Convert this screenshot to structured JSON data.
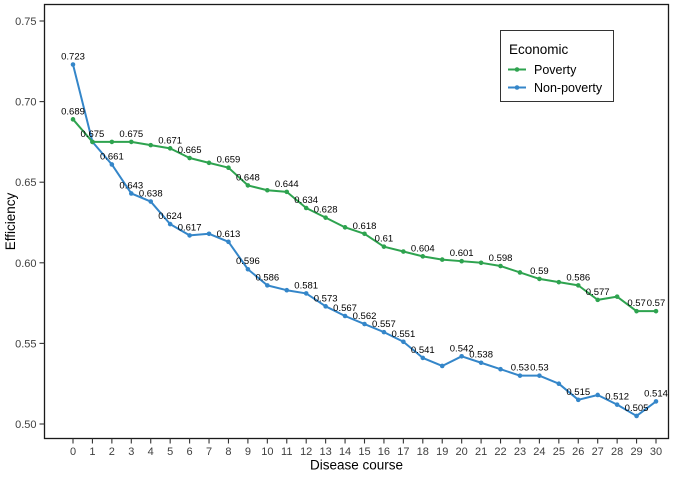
{
  "figure": {
    "background": "#ffffff",
    "panel_border_color": "#1a1a1a",
    "tick_color": "#333333",
    "tick_label_color": "#404040",
    "data_label_color": "#000000"
  },
  "chart_data": {
    "type": "line",
    "title": "",
    "xlabel": "Disease course",
    "ylabel": "Efficiency",
    "x": [
      0,
      1,
      2,
      3,
      4,
      5,
      6,
      7,
      8,
      9,
      10,
      11,
      12,
      13,
      14,
      15,
      16,
      17,
      18,
      19,
      20,
      21,
      22,
      23,
      24,
      25,
      26,
      27,
      28,
      29,
      30
    ],
    "x_tick_labels": [
      "0",
      "1",
      "2",
      "3",
      "4",
      "5",
      "6",
      "7",
      "8",
      "9",
      "10",
      "11",
      "12",
      "13",
      "14",
      "15",
      "16",
      "17",
      "18",
      "19",
      "20",
      "21",
      "22",
      "23",
      "24",
      "25",
      "26",
      "27",
      "28",
      "29",
      "30"
    ],
    "y_tick_values": [
      0.5,
      0.55,
      0.6,
      0.65,
      0.7,
      0.75
    ],
    "y_tick_labels": [
      "0.50",
      "0.55",
      "0.60",
      "0.65",
      "0.70",
      "0.75"
    ],
    "xlim": [
      0,
      30
    ],
    "ylim": [
      0.5,
      0.75
    ],
    "grid": "off",
    "legend": {
      "title": "Economic",
      "position": "top-right-inside",
      "entries": [
        {
          "label": "Poverty",
          "color": "#2ea34f"
        },
        {
          "label": "Non-poverty",
          "color": "#3486c9"
        }
      ]
    },
    "series": [
      {
        "name": "Non-poverty",
        "color": "#3486c9",
        "values": [
          0.723,
          0.675,
          0.661,
          0.643,
          0.638,
          0.624,
          0.617,
          0.618,
          0.613,
          0.596,
          0.586,
          0.583,
          0.581,
          0.573,
          0.567,
          0.562,
          0.557,
          0.551,
          0.541,
          0.536,
          0.542,
          0.538,
          0.534,
          0.53,
          0.53,
          0.525,
          0.515,
          0.518,
          0.512,
          0.505,
          0.514
        ],
        "point_labels": {
          "0": "0.723",
          "2": "0.661",
          "3": "0.643",
          "4": "0.638",
          "5": "0.624",
          "6": "0.617",
          "8": "0.613",
          "9": "0.596",
          "10": "0.586",
          "12": "0.581",
          "13": "0.573",
          "14": "0.567",
          "15": "0.562",
          "16": "0.557",
          "17": "0.551",
          "18": "0.541",
          "20": "0.542",
          "21": "0.538",
          "23": "0.53",
          "24": "0.53",
          "26": "0.515",
          "28": "0.512",
          "29": "0.505",
          "30": "0.514"
        }
      },
      {
        "name": "Poverty",
        "color": "#2ea34f",
        "values": [
          0.689,
          0.675,
          0.675,
          0.675,
          0.673,
          0.671,
          0.665,
          0.662,
          0.659,
          0.648,
          0.645,
          0.644,
          0.634,
          0.628,
          0.622,
          0.618,
          0.61,
          0.607,
          0.604,
          0.602,
          0.601,
          0.6,
          0.598,
          0.594,
          0.59,
          0.588,
          0.586,
          0.577,
          0.579,
          0.57,
          0.57
        ],
        "point_labels": {
          "0": "0.689",
          "1": "0.675",
          "3": "0.675",
          "5": "0.671",
          "6": "0.665",
          "8": "0.659",
          "9": "0.648",
          "11": "0.644",
          "12": "0.634",
          "13": "0.628",
          "15": "0.618",
          "16": "0.61",
          "18": "0.604",
          "20": "0.601",
          "22": "0.598",
          "24": "0.59",
          "26": "0.586",
          "27": "0.577",
          "29": "0.57",
          "30": "0.57"
        }
      }
    ]
  }
}
